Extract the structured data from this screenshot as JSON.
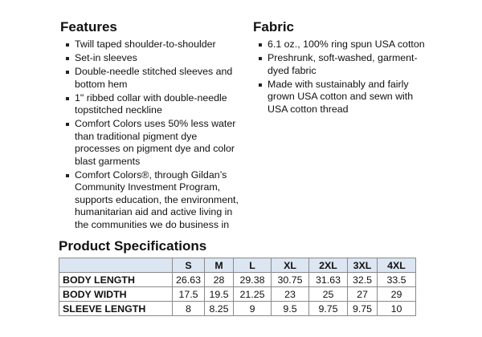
{
  "features": {
    "title": "Features",
    "items": [
      "Twill taped shoulder-to-shoulder",
      "Set-in sleeves",
      "Double-needle stitched sleeves and bottom hem",
      "1\" ribbed collar with double-needle topstitched neckline",
      "Comfort Colors uses 50% less water than traditional pigment dye processes on pigment dye and color blast garments",
      "Comfort Colors®, through Gildan’s Community Investment Program, supports education, the environment, humanitarian aid and active living in the communities we do business in"
    ]
  },
  "fabric": {
    "title": "Fabric",
    "items": [
      "6.1 oz., 100% ring spun USA cotton",
      "Preshrunk, soft-washed, garment-dyed fabric",
      "Made with sustainably and fairly grown USA cotton and sewn with USA cotton thread"
    ]
  },
  "specs": {
    "title": "Product Specifications",
    "header_color": "#dce6f2",
    "sizes": [
      "S",
      "M",
      "L",
      "XL",
      "2XL",
      "3XL",
      "4XL"
    ],
    "rows": [
      {
        "label": "BODY LENGTH",
        "values": [
          "26.63",
          "28",
          "29.38",
          "30.75",
          "31.63",
          "32.5",
          "33.5"
        ]
      },
      {
        "label": "BODY WIDTH",
        "values": [
          "17.5",
          "19.5",
          "21.25",
          "23",
          "25",
          "27",
          "29"
        ]
      },
      {
        "label": "SLEEVE LENGTH",
        "values": [
          "8",
          "8.25",
          "9",
          "9.5",
          "9.75",
          "9.75",
          "10"
        ]
      }
    ]
  }
}
